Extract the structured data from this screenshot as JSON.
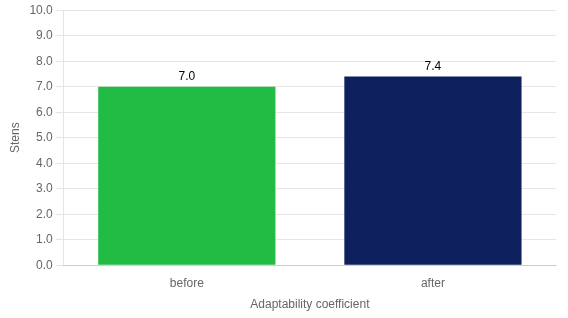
{
  "chart_data": {
    "type": "bar",
    "categories": [
      "before",
      "after"
    ],
    "values": [
      7.0,
      7.4
    ],
    "value_labels": [
      "7.0",
      "7.4"
    ],
    "data_labels": true,
    "colors": [
      "#22bb44",
      "#0d1f5c"
    ],
    "xlabel": "Adaptability coefficient",
    "ylabel": "Stens",
    "ylim": [
      0.0,
      10.0
    ],
    "yticks": [
      {
        "value": 0,
        "label": "0.0"
      },
      {
        "value": 1,
        "label": "1.0"
      },
      {
        "value": 2,
        "label": "2.0"
      },
      {
        "value": 3,
        "label": "3.0"
      },
      {
        "value": 4,
        "label": "4.0"
      },
      {
        "value": 5,
        "label": "5.0"
      },
      {
        "value": 6,
        "label": "6.0"
      },
      {
        "value": 7,
        "label": "7.0"
      },
      {
        "value": 8,
        "label": "8.0"
      },
      {
        "value": 9,
        "label": "9.0"
      },
      {
        "value": 10,
        "label": "10.0"
      }
    ],
    "grid": true
  }
}
